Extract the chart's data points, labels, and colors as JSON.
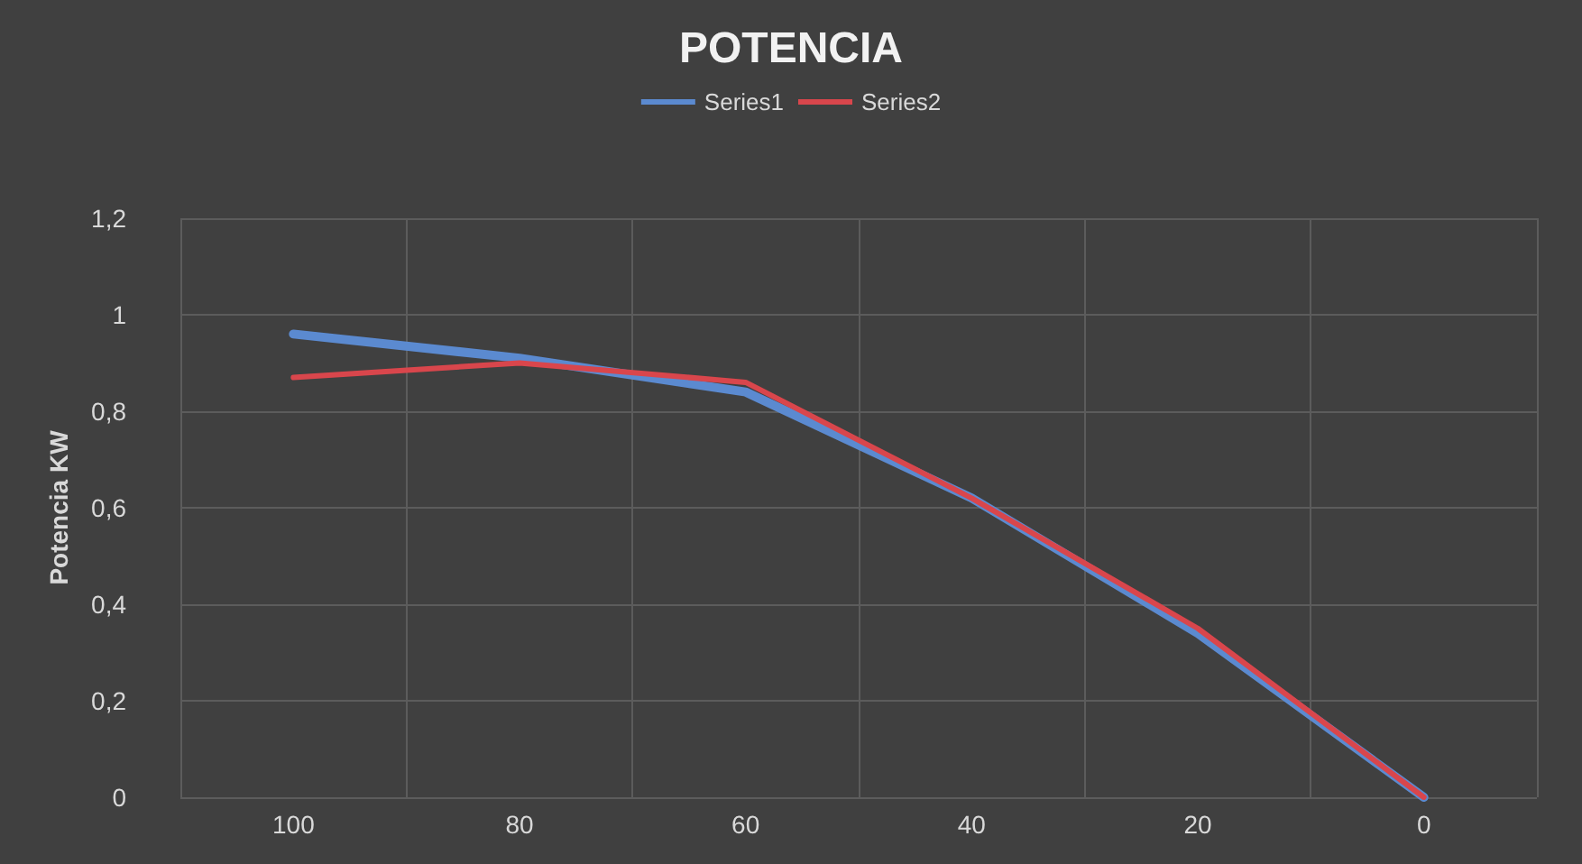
{
  "chart_data": {
    "type": "line",
    "title": "POTENCIA",
    "ylabel": "Potencia KW",
    "categories": [
      "100",
      "80",
      "60",
      "40",
      "20",
      "0"
    ],
    "series": [
      {
        "name": "Series1",
        "color": "#5b8ad0",
        "values": [
          0.96,
          0.91,
          0.84,
          0.62,
          0.34,
          0
        ]
      },
      {
        "name": "Series2",
        "color": "#d9464c",
        "values": [
          0.87,
          0.9,
          0.86,
          0.62,
          0.35,
          0
        ]
      }
    ],
    "ylim": [
      0,
      1.2
    ],
    "yticks": [
      {
        "value": 0,
        "label": "0"
      },
      {
        "value": 0.2,
        "label": "0,2"
      },
      {
        "value": 0.4,
        "label": "0,4"
      },
      {
        "value": 0.6,
        "label": "0,6"
      },
      {
        "value": 0.8,
        "label": "0,8"
      },
      {
        "value": 1,
        "label": "1"
      },
      {
        "value": 1.2,
        "label": "1,2"
      }
    ],
    "grid": true,
    "legend": "top",
    "marker": "none",
    "line_style": "solid"
  }
}
